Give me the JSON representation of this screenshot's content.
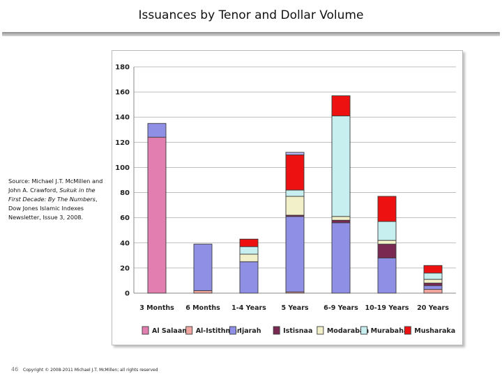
{
  "slide": {
    "title": "Issuances by Tenor and Dollar Volume",
    "source": {
      "prefix": "Source: Michael J.T. McMillen and John A. Crawford, ",
      "work": "Sukuk in the First Decade: By The Numbers",
      "suffix": ", Dow Jones Islamic Indexes Newsletter, Issue 3, 2008."
    },
    "page_number": "46",
    "copyright": "Copyright © 2008-2011 Michael J.T. McMillen; all rights reserved"
  },
  "chart_data": {
    "type": "bar",
    "stacked": true,
    "categories": [
      "3 Months",
      "6 Months",
      "1-4 Years",
      "5 Years",
      "6-9 Years",
      "10-19 Years",
      "20 Years"
    ],
    "series": [
      {
        "name": "Al Salaam",
        "color": "#e27fb0",
        "values": [
          124,
          0,
          0,
          0,
          0,
          0,
          0
        ]
      },
      {
        "name": "Al-Istithmar",
        "color": "#f1a6a0",
        "values": [
          0,
          2,
          0,
          1,
          0,
          0,
          3
        ]
      },
      {
        "name": "Ijarah",
        "color": "#8f8fe6",
        "values": [
          11,
          37,
          25,
          60,
          56,
          28,
          3
        ]
      },
      {
        "name": "Istisnaa",
        "color": "#7a2a52",
        "values": [
          0,
          0,
          0,
          1,
          2,
          11,
          2
        ]
      },
      {
        "name": "Modarabah",
        "color": "#f2f0c8",
        "values": [
          0,
          0,
          6,
          15,
          3,
          3,
          3
        ]
      },
      {
        "name": "Murabaha",
        "color": "#c8efef",
        "values": [
          0,
          0,
          6,
          5,
          80,
          15,
          5
        ]
      },
      {
        "name": "Musharaka",
        "color": "#ee1111",
        "values": [
          0,
          0,
          6,
          28,
          16,
          20,
          6
        ]
      },
      {
        "name": "",
        "color": "#b4b4f2",
        "values": [
          0,
          0,
          0,
          2,
          0,
          0,
          0
        ]
      }
    ],
    "ylim": [
      0,
      180
    ],
    "yticks": [
      0,
      20,
      40,
      60,
      80,
      100,
      120,
      140,
      160,
      180
    ],
    "xlabel": "",
    "ylabel": "",
    "grid": true,
    "legend_position": "bottom"
  }
}
